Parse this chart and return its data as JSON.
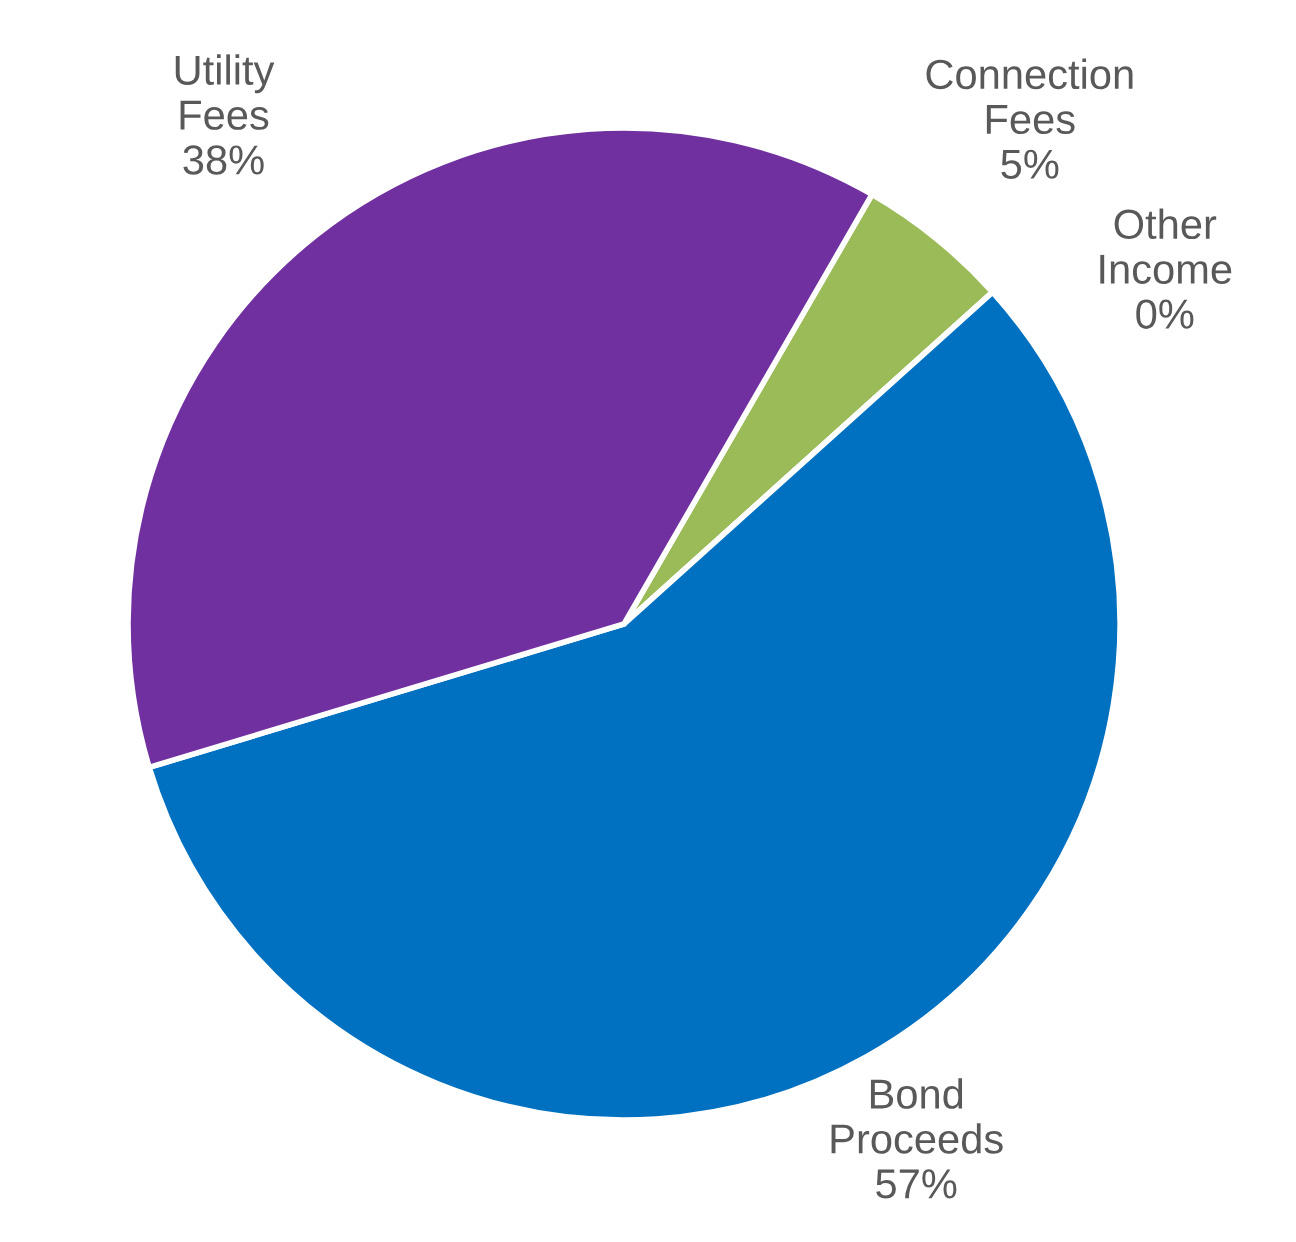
{
  "chart_data": {
    "type": "pie",
    "categories": [
      "Connection Fees",
      "Other Income",
      "Bond Proceeds",
      "Utility Fees"
    ],
    "values": [
      5,
      0,
      57,
      38
    ],
    "value_labels": [
      "5%",
      "0%",
      "57%",
      "38%"
    ],
    "colors": [
      "#9bbb59",
      "#4bacc6",
      "#0070c0",
      "#7030a0"
    ],
    "legend": false
  }
}
